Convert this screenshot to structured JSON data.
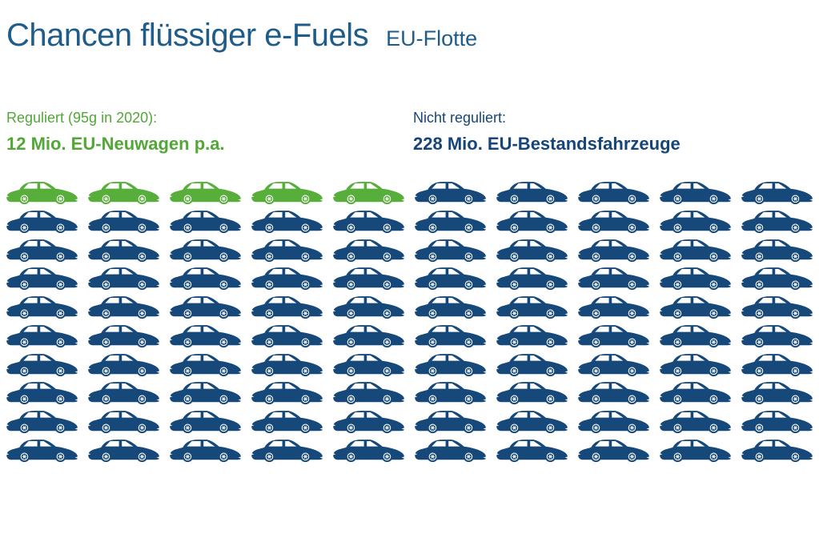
{
  "header": {
    "title": "Chancen flüssiger e-Fuels",
    "subtitle": "EU-Flotte"
  },
  "legend": {
    "regulated": {
      "line1": "Reguliert (95g in 2020):",
      "line2": "12 Mio. EU-Neuwagen p.a.",
      "color": "#52a737"
    },
    "unregulated": {
      "line1": "Nicht reguliert:",
      "line2": "228 Mio. EU-Bestandsfahrzeuge",
      "color": "#16457b"
    }
  },
  "palette": {
    "title_blue": "#1f5c89",
    "text_navy": "#16457b",
    "car_navy": "#16497a",
    "text_green": "#52a737",
    "car_green": "#58ae3a",
    "background": "#ffffff"
  },
  "grid": {
    "rows": 10,
    "columns": 10,
    "total_icons": 100,
    "green_count": 5,
    "blue_count": 95,
    "icon": "car-side-icon"
  },
  "chart_data": {
    "type": "pictogram",
    "title": "Chancen flüssiger e-Fuels",
    "subtitle": "EU-Flotte",
    "categories": [
      "Reguliert (95g in 2020)",
      "Nicht reguliert"
    ],
    "values": [
      12,
      228
    ],
    "value_labels": [
      "12 Mio. EU-Neuwagen p.a.",
      "228 Mio. EU-Bestandsfahrzeuge"
    ],
    "unit": "Mio. Fahrzeuge",
    "icons_total": 100,
    "icons_per_category": [
      5,
      95
    ],
    "icon": "car",
    "colors": [
      "#58ae3a",
      "#16497a"
    ],
    "layout": "10x10 grid of car icons, first 5 icons of row 1 green, remaining 95 navy"
  }
}
